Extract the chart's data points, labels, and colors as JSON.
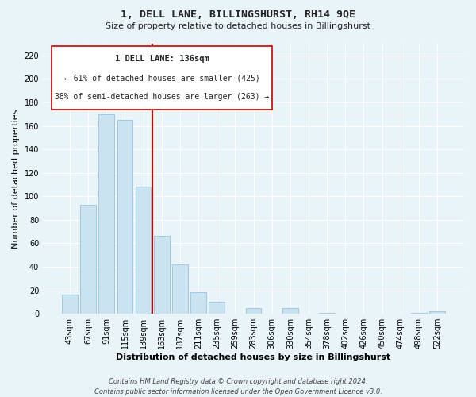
{
  "title": "1, DELL LANE, BILLINGSHURST, RH14 9QE",
  "subtitle": "Size of property relative to detached houses in Billingshurst",
  "xlabel": "Distribution of detached houses by size in Billingshurst",
  "ylabel": "Number of detached properties",
  "bar_labels": [
    "43sqm",
    "67sqm",
    "91sqm",
    "115sqm",
    "139sqm",
    "163sqm",
    "187sqm",
    "211sqm",
    "235sqm",
    "259sqm",
    "283sqm",
    "306sqm",
    "330sqm",
    "354sqm",
    "378sqm",
    "402sqm",
    "426sqm",
    "450sqm",
    "474sqm",
    "498sqm",
    "522sqm"
  ],
  "bar_values": [
    16,
    93,
    170,
    165,
    108,
    66,
    42,
    18,
    10,
    0,
    5,
    0,
    5,
    0,
    1,
    0,
    0,
    0,
    0,
    1,
    2
  ],
  "bar_color": "#c9e4f0",
  "bar_edge_color": "#a0c8e0",
  "property_line_index": 4,
  "property_line_color": "#cc0000",
  "ylim": [
    0,
    230
  ],
  "yticks": [
    0,
    20,
    40,
    60,
    80,
    100,
    120,
    140,
    160,
    180,
    200,
    220
  ],
  "ann_line1": "1 DELL LANE: 136sqm",
  "ann_line2": "← 61% of detached houses are smaller (425)",
  "ann_line3": "38% of semi-detached houses are larger (263) →",
  "footer_text": "Contains HM Land Registry data © Crown copyright and database right 2024.\nContains public sector information licensed under the Open Government Licence v3.0.",
  "bg_color": "#e8f4f8",
  "grid_color": "#ffffff",
  "title_fontsize": 9.5,
  "subtitle_fontsize": 8.0,
  "axis_label_fontsize": 8.0,
  "tick_fontsize": 7.0,
  "footer_fontsize": 6.0
}
